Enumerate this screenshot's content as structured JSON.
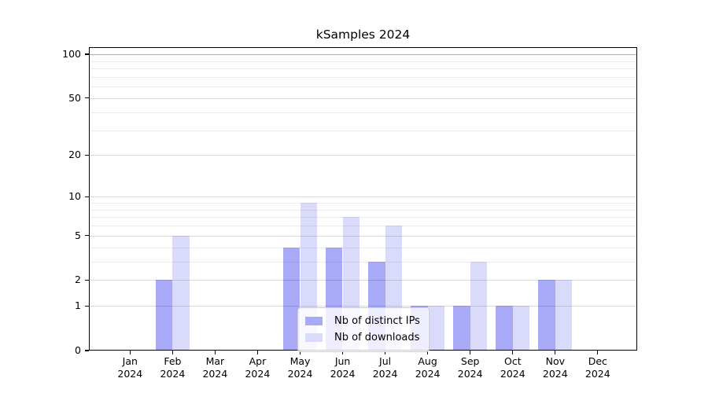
{
  "title": "kSamples 2024",
  "chart_data": {
    "type": "bar",
    "title": "kSamples 2024",
    "categories": [
      "Jan",
      "Feb",
      "Mar",
      "Apr",
      "May",
      "Jun",
      "Jul",
      "Aug",
      "Sep",
      "Oct",
      "Nov",
      "Dec"
    ],
    "category_year": "2024",
    "series": [
      {
        "name": "Nb of distinct IPs",
        "color": "#a9aaf7",
        "values": [
          0,
          2,
          0,
          0,
          4,
          4,
          3,
          1,
          1,
          1,
          2,
          0
        ]
      },
      {
        "name": "Nb of downloads",
        "color": "#dadbfa",
        "values": [
          0,
          5,
          0,
          0,
          9,
          7,
          6,
          1,
          3,
          1,
          2,
          0
        ]
      }
    ],
    "yticks": [
      0,
      1,
      2,
      5,
      10,
      20,
      50,
      100
    ],
    "minor_gridline_values": [
      3,
      4,
      6,
      7,
      8,
      9,
      30,
      40,
      60,
      70,
      80,
      90
    ],
    "scale": "log1p",
    "ylim": [
      0,
      113
    ],
    "xlabel": "",
    "ylabel": "",
    "grid": true,
    "legend_position": "lower center",
    "colors": {
      "grid_minor": "rgba(0,0,0,0.07)",
      "grid_major": "rgba(0,0,0,0.14)",
      "grid_dark": "rgba(0,0,0,0.32)",
      "axis": "#000000"
    }
  }
}
